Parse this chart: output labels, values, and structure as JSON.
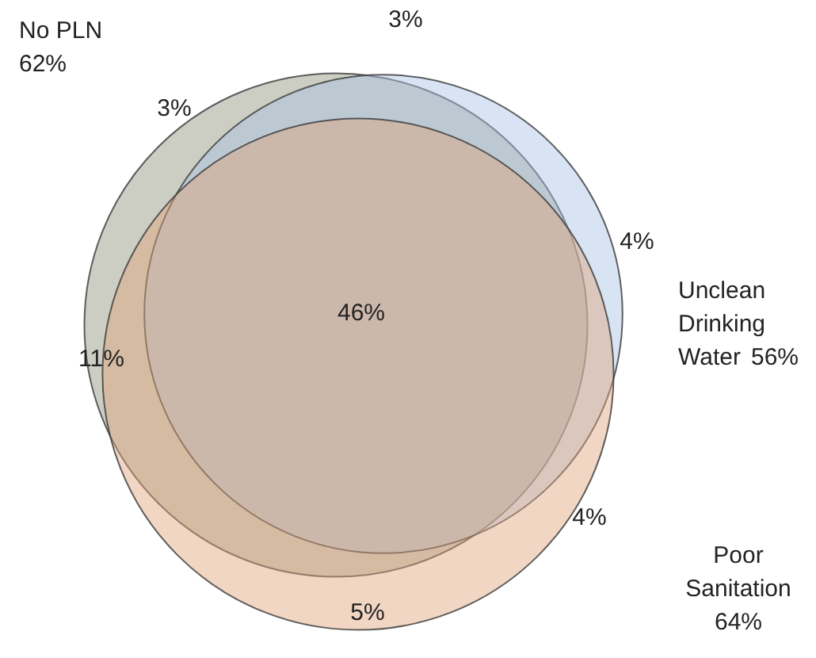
{
  "chart_data": {
    "type": "other",
    "categories": [
      "No PLN",
      "Unclean Drinking Water",
      "Poor Sanitation"
    ],
    "values": [
      62,
      56,
      64
    ],
    "value_labels": [
      "62%",
      "56%",
      "64%"
    ],
    "colors": [
      "#8e9279",
      "#a9c3e6",
      "#dfa57a"
    ],
    "annotations": [
      "3%",
      "3%",
      "4%",
      "46%",
      "11%",
      "4%",
      "5%"
    ]
  }
}
